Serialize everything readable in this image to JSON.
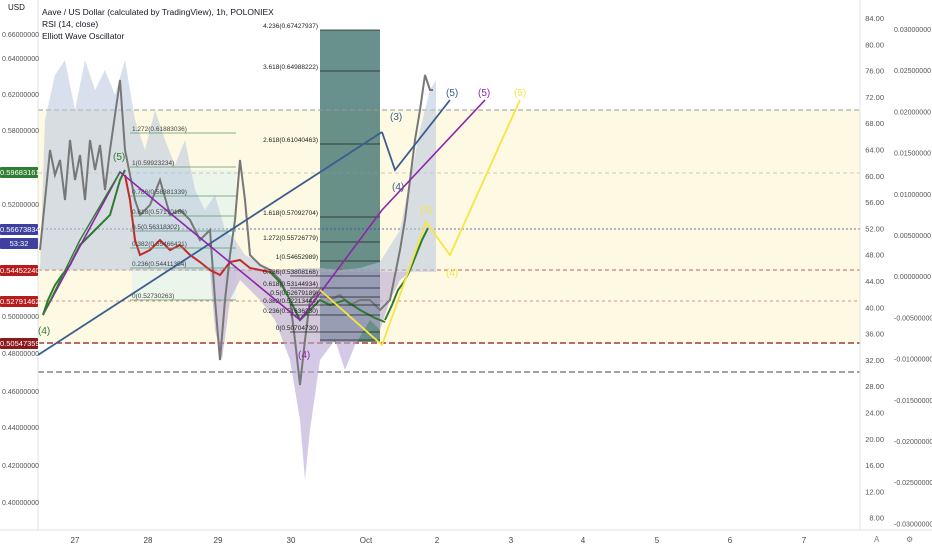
{
  "legend": {
    "title": "Aave / US Dollar (calculated by TradingView), 1h, POLONIEX",
    "line2": "RSI (14, close)",
    "line3": "Elliott Wave Oscillator"
  },
  "currency": "USD",
  "price_axis": [
    "0.66000000",
    "0.64000000",
    "0.62000000",
    "0.58000000",
    "0.52000000",
    "0.50000000",
    "0.48000000",
    "0.46000000",
    "0.44000000",
    "0.42000000",
    "0.40000000"
  ],
  "price_tags": [
    {
      "text": "0.59683161",
      "color": "#2e7d32"
    },
    {
      "text": "0.56673834",
      "color": "#3f3fa0"
    },
    {
      "text": "53:32",
      "color": "#3f3fa0"
    },
    {
      "text": "0.54452240",
      "color": "#b71c1c"
    },
    {
      "text": "0.52791462",
      "color": "#b71c1c"
    },
    {
      "text": "0.50547359",
      "color": "#8b1a1a"
    }
  ],
  "rsi_axis": [
    "84.00",
    "80.00",
    "76.00",
    "72.00",
    "68.00",
    "64.00",
    "60.00",
    "56.00",
    "52.00",
    "48.00",
    "44.00",
    "40.00",
    "36.00",
    "32.00",
    "28.00",
    "24.00",
    "20.00",
    "16.00",
    "12.00",
    "8.00"
  ],
  "ewo_axis": [
    "0.03000000",
    "0.02500000",
    "0.02000000",
    "0.01500000",
    "0.01000000",
    "0.00500000",
    "0.00000000",
    "-0.00500000",
    "-0.01000000",
    "-0.01500000",
    "-0.02000000",
    "-0.02500000",
    "-0.03000000"
  ],
  "time_axis": [
    "27",
    "28",
    "29",
    "30",
    "Oct",
    "2",
    "3",
    "4",
    "5",
    "6",
    "7"
  ],
  "fib_right": [
    "4.236(0.67427937)",
    "3.618(0.64988222)",
    "2.618(0.61040463)",
    "1.618(0.57092704)",
    "1.272(0.55726779)",
    "1(0.54652989)",
    "0.786(0.53808168)",
    "0.618(0.53144934)",
    "0.5(0.52679189)",
    "0.382(0.52213444)",
    "0.236(0.51636230)",
    "0(0.50704730)"
  ],
  "fib_left": [
    "1.272(0.61883036)",
    "1(0.59923234)",
    "0.786(0.58381339)",
    "0.618(0.57170186)",
    "0.5(0.56318302)",
    "0.382(0.55466421)",
    "0.236(0.54411354)",
    "0(0.52730263)"
  ],
  "wave_labels": {
    "w4_green": "(4)",
    "w5_green": "(5)",
    "w3_blue": "(3)",
    "w4_blue": "(4)",
    "w5_blue": "(5)",
    "w5_purple": "(5)",
    "w5_yellow": "(5)",
    "w3_yellow": "(3)",
    "w4_yellow": "(4)",
    "w4_purple": "(4)"
  },
  "colors": {
    "green": "#2e7d32",
    "blue": "#3a5f8f",
    "purple": "#8e24aa",
    "yellow": "#f5e642",
    "red": "#c62828"
  }
}
